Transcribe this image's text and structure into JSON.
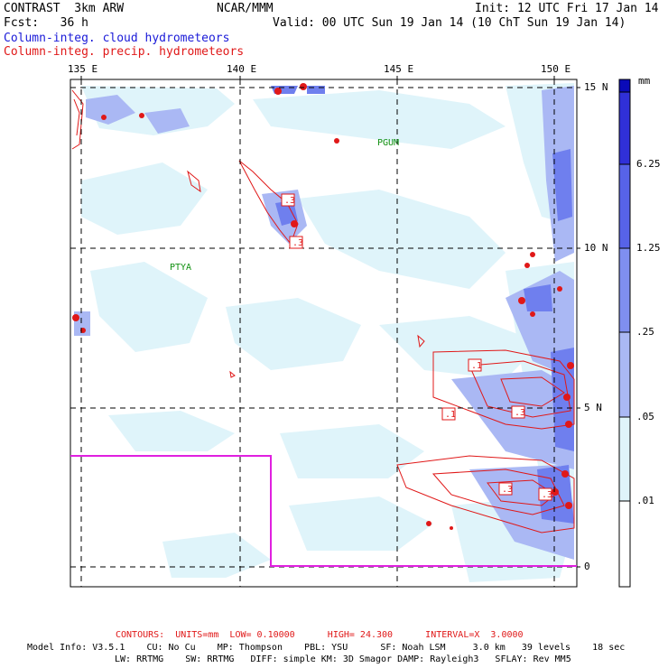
{
  "header": {
    "model": "CONTRAST  3km ARW",
    "org": "NCAR/MMM",
    "init": "Init: 12 UTC Fri 17 Jan 14",
    "fcst": "Fcst:   36 h",
    "valid": "Valid: 00 UTC Sun 19 Jan 14 (10 ChT Sun 19 Jan 14)",
    "cloud_label": "Column-integ. cloud hydrometeors",
    "precip_label": "Column-integ. precip. hydrometeors"
  },
  "colors": {
    "cloud_label": "#1a1ad8",
    "precip_label": "#e01818",
    "boundary": "#e020e0",
    "contour": "#e01818",
    "place_label": "#109010"
  },
  "axes": {
    "lon_labels": [
      "135 E",
      "140 E",
      "145 E",
      "150 E"
    ],
    "lat_labels": [
      "15 N",
      "10 N",
      "5 N",
      "0"
    ]
  },
  "places": [
    "PGUM",
    "PTYA"
  ],
  "contour_labels": [
    ".3",
    ".3",
    ".1",
    ".1",
    ".3",
    ".3",
    ".3"
  ],
  "legend": {
    "unit": "mm",
    "levels": [
      "6.25",
      "1.25",
      ".25",
      ".05",
      ".01"
    ],
    "bands": [
      {
        "color": "#ffffff"
      },
      {
        "color": "#dff4fa"
      },
      {
        "color": "#aab8f4"
      },
      {
        "color": "#7f8ff0"
      },
      {
        "color": "#5763e8"
      },
      {
        "color": "#3030d8"
      },
      {
        "color": "#0a0ab8"
      }
    ]
  },
  "footer": {
    "contours": "CONTOURS:  UNITS=mm  LOW= 0.10000      HIGH= 24.300      INTERVAL=X  3.0000",
    "line1": "Model Info: V3.5.1    CU: No Cu    MP: Thompson    PBL: YSU      SF: Noah LSM     3.0 km   39 levels    18 sec",
    "line2": "LW: RRTMG    SW: RRTMG   DIFF: simple KM: 3D Smagor DAMP: Rayleigh3   SFLAY: Rev MM5"
  }
}
